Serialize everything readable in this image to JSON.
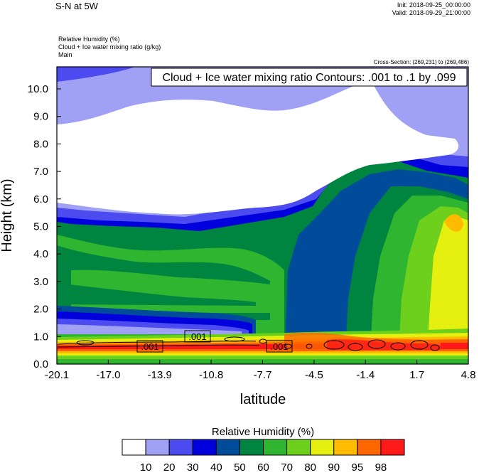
{
  "header": {
    "title": "S-N at 5W",
    "init": "Init: 2018-09-25_00:00:00",
    "valid": "Valid: 2018-09-29_21:00:00",
    "field1": "Relative Humidity   (%)",
    "field2": "Cloud + Ice water mixing ratio   (g/kg)",
    "field3": "Main",
    "cross_section": "Cross-Section: (269,231) to (269,486)"
  },
  "chart_data": {
    "type": "heatmap",
    "contour_label": "Cloud + Ice water mixing ratio Contours: .001 to .1 by .099",
    "contour_value_labels": [
      ".001",
      ".001",
      ".001"
    ],
    "xlabel": "latitude",
    "ylabel": "Height (km)",
    "xlim": [
      -20.1,
      4.8
    ],
    "ylim": [
      0.0,
      10.8
    ],
    "x_ticks": [
      "-20.1",
      "-17.0",
      "-13.9",
      "-10.8",
      "-7.7",
      "-4.5",
      "-1.4",
      "1.7",
      "4.8"
    ],
    "y_ticks": [
      "0.0",
      "1.0",
      "2.0",
      "3.0",
      "4.0",
      "5.0",
      "6.0",
      "7.0",
      "8.0",
      "9.0",
      "10.0"
    ],
    "colorbar": {
      "title": "Relative Humidity  (%)",
      "levels": [
        "10",
        "20",
        "30",
        "40",
        "50",
        "60",
        "70",
        "80",
        "90",
        "95",
        "98"
      ],
      "colors": [
        "#ffffff",
        "#a0a0f5",
        "#4b4bf0",
        "#0000dc",
        "#004c9a",
        "#008540",
        "#2fb52f",
        "#6cd01c",
        "#e6f010",
        "#ffbb00",
        "#ff6600",
        "#ff1a1a"
      ]
    }
  }
}
